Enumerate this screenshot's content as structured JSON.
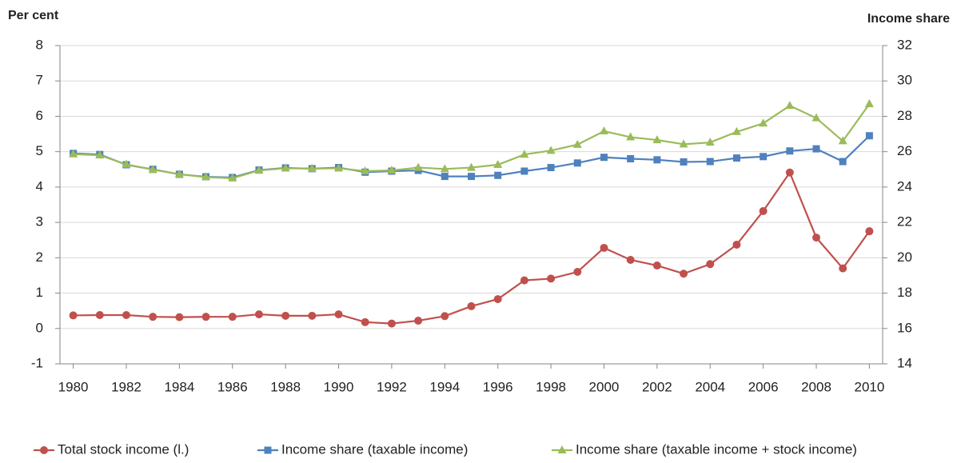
{
  "chart_data": {
    "type": "line",
    "y_label": "Per cent",
    "y2_label": "Income share",
    "x": [
      1980,
      1981,
      1982,
      1983,
      1984,
      1985,
      1986,
      1987,
      1988,
      1989,
      1990,
      1991,
      1992,
      1993,
      1994,
      1995,
      1996,
      1997,
      1998,
      1999,
      2000,
      2001,
      2002,
      2003,
      2004,
      2005,
      2006,
      2007,
      2008,
      2009,
      2010
    ],
    "xlim": [
      1979.5,
      2010.5
    ],
    "xticks": [
      1980,
      1982,
      1984,
      1986,
      1988,
      1990,
      1992,
      1994,
      1996,
      1998,
      2000,
      2002,
      2004,
      2006,
      2008,
      2010
    ],
    "ylim": [
      -1,
      8
    ],
    "yticks": [
      -1,
      0,
      1,
      2,
      3,
      4,
      5,
      6,
      7,
      8
    ],
    "y2lim": [
      14,
      32
    ],
    "y2ticks": [
      14,
      16,
      18,
      20,
      22,
      24,
      26,
      28,
      30,
      32
    ],
    "grid": true,
    "legend": "bottom",
    "series": [
      {
        "name": "Total stock income (l.)",
        "color": "#c0504d",
        "marker": "circle",
        "values": [
          0.37,
          0.38,
          0.38,
          0.33,
          0.32,
          0.33,
          0.33,
          0.4,
          0.36,
          0.36,
          0.4,
          0.18,
          0.14,
          0.22,
          0.35,
          0.63,
          0.83,
          1.36,
          1.41,
          1.6,
          2.28,
          1.94,
          1.78,
          1.55,
          1.82,
          2.37,
          3.32,
          4.41,
          2.57,
          1.7,
          2.75
        ]
      },
      {
        "name": "Income share (taxable income)",
        "color": "#4f81bd",
        "marker": "square",
        "axis": "y2",
        "values": [
          25.9,
          25.84,
          25.26,
          25.0,
          24.72,
          24.58,
          24.54,
          24.96,
          25.08,
          25.04,
          25.1,
          24.84,
          24.9,
          24.94,
          24.6,
          24.6,
          24.66,
          24.9,
          25.1,
          25.36,
          25.68,
          25.6,
          25.54,
          25.42,
          25.44,
          25.64,
          25.72,
          26.04,
          26.16,
          25.44,
          26.9
        ]
      },
      {
        "name": "Income share (taxable income + stock income)",
        "color": "#9bbb59",
        "marker": "triangle",
        "axis": "y2",
        "values": [
          25.86,
          25.8,
          25.28,
          24.98,
          24.72,
          24.56,
          24.5,
          24.94,
          25.06,
          25.04,
          25.06,
          24.9,
          24.94,
          25.1,
          25.02,
          25.1,
          25.26,
          25.84,
          26.06,
          26.4,
          27.16,
          26.82,
          26.66,
          26.42,
          26.52,
          27.12,
          27.6,
          28.6,
          27.9,
          26.6,
          28.7
        ]
      }
    ]
  }
}
